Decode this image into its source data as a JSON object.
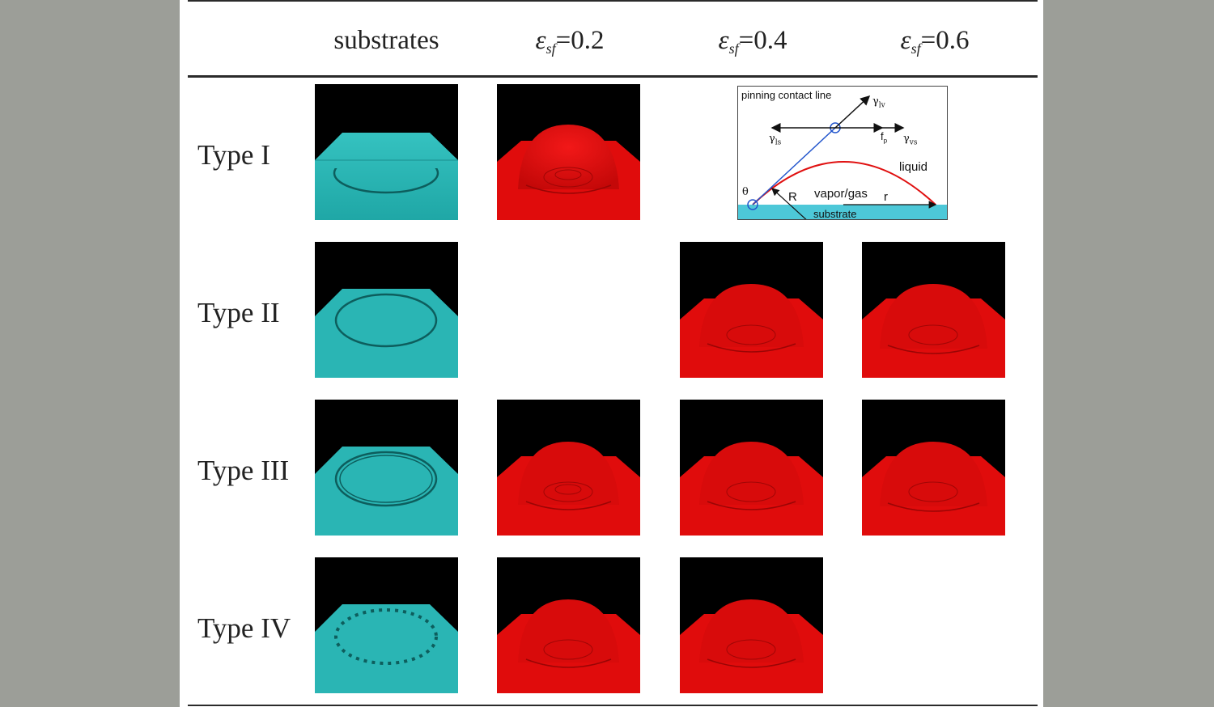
{
  "header": {
    "col_substrates": "substrates",
    "eps_symbol": "ε",
    "eps_sub": "sf",
    "col_eps_02": "=0.2",
    "col_eps_04": "=0.4",
    "col_eps_06": "=0.6"
  },
  "rows": {
    "type1": "Type I",
    "type2": "Type II",
    "type3": "Type III",
    "type4": "Type IV"
  },
  "inset": {
    "pinning_label": "pinning contact line",
    "gamma_symbol": "γ",
    "gamma_lv_sub": "lv",
    "gamma_ls_sub": "ls",
    "gamma_vs_sub": "vs",
    "fp_symbol": "f",
    "fp_sub": "p",
    "liquid_label": "liquid",
    "theta_label": "θ",
    "R_label": "R",
    "vapor_label": "vapor/gas",
    "r_label": "r",
    "substrate_label": "substrate"
  },
  "colors": {
    "page_background": "#9c9e98",
    "substrate_teal": "#2ab5b4",
    "droplet_red": "#e00c0c",
    "panel_background": "#000000",
    "inset_substrate": "#4dc8d8",
    "inset_arc": "#e01010",
    "inset_contact_line": "#2255cc"
  }
}
